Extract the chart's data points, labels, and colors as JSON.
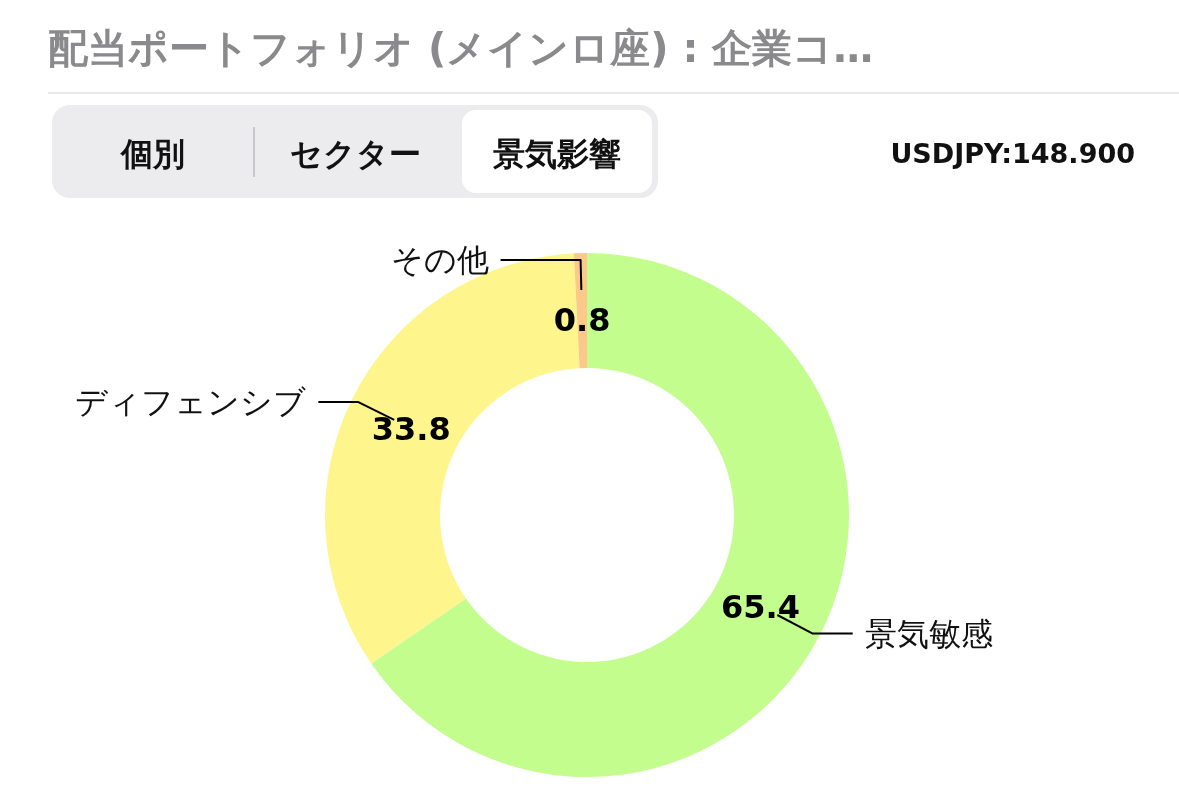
{
  "chart_data": {
    "type": "donut",
    "title": "配当ポートフォリオ (メインロ座) : 企業コ…",
    "categories": [
      "景気敏感",
      "ディフェンシブ",
      "その他"
    ],
    "values": [
      65.4,
      33.8,
      0.8
    ],
    "colors": [
      "#c2fd8e",
      "#fef68d",
      "#fdc98a"
    ],
    "data_labels": true,
    "annotations": [
      "個別",
      "セクター",
      "景気影響",
      "USDJPY:148.900"
    ]
  }
}
